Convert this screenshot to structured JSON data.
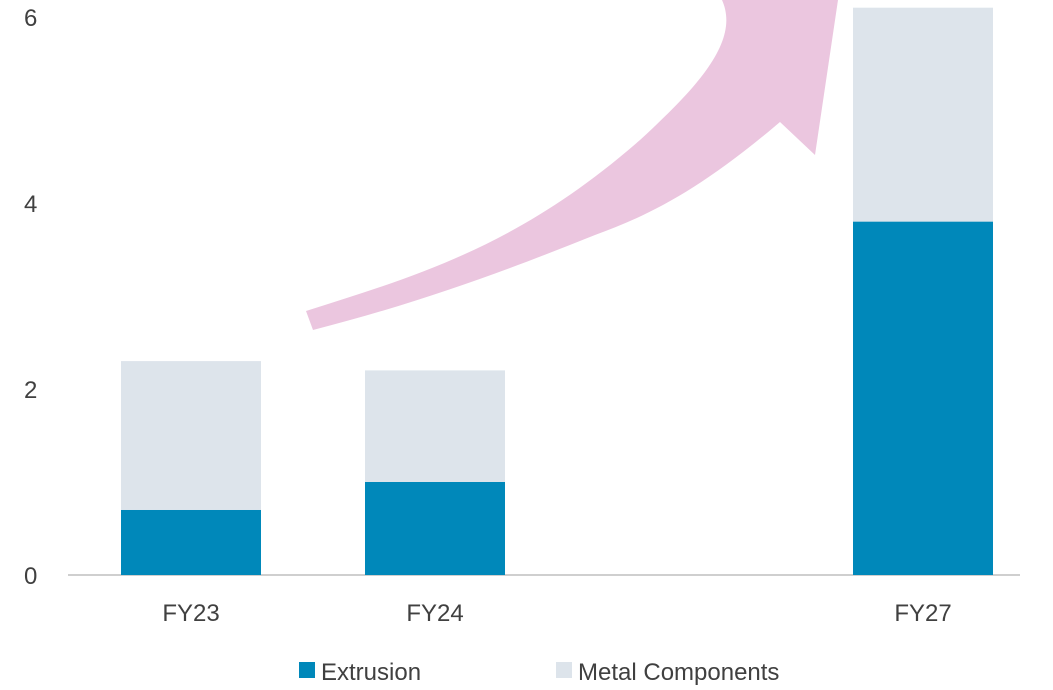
{
  "chart_data": {
    "type": "bar",
    "stacked": true,
    "categories": [
      "FY23",
      "FY24",
      "FY27"
    ],
    "series": [
      {
        "name": "Extrusion",
        "values": [
          0.7,
          1.0,
          3.8
        ],
        "color": "#0088BA"
      },
      {
        "name": "Metal Components",
        "values": [
          1.6,
          1.2,
          2.3
        ],
        "color": "#DDE4EB"
      }
    ],
    "yticks": [
      0,
      2,
      4,
      6
    ],
    "ylim": [
      0,
      6.4
    ],
    "grid": false,
    "legend_position": "bottom",
    "annotation": {
      "type": "growth-arrow",
      "color": "#EBC6DF"
    }
  }
}
